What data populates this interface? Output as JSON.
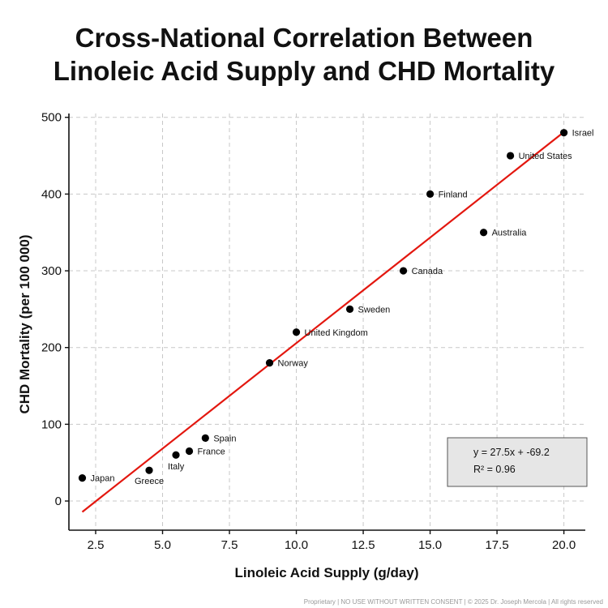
{
  "chart_data": {
    "type": "scatter",
    "title_lines": [
      "Cross-National Correlation Between",
      "Linoleic Acid Supply and CHD Mortality"
    ],
    "xlabel": "Linoleic Acid Supply (g/day)",
    "ylabel": "CHD Mortality (per 100 000)",
    "xlim": [
      1.5,
      20.8
    ],
    "ylim": [
      -38,
      505
    ],
    "x_ticks": [
      2.5,
      5.0,
      7.5,
      10.0,
      12.5,
      15.0,
      17.5,
      20.0
    ],
    "x_tick_labels": [
      "2.5",
      "5.0",
      "7.5",
      "10.0",
      "12.5",
      "15.0",
      "17.5",
      "20.0"
    ],
    "y_ticks": [
      0,
      100,
      200,
      300,
      400,
      500
    ],
    "y_tick_labels": [
      "0",
      "100",
      "200",
      "300",
      "400",
      "500"
    ],
    "grid": true,
    "points": [
      {
        "label": "Japan",
        "x": 2.0,
        "y": 30
      },
      {
        "label": "Greece",
        "x": 4.5,
        "y": 40
      },
      {
        "label": "Italy",
        "x": 5.5,
        "y": 60
      },
      {
        "label": "France",
        "x": 6.0,
        "y": 65
      },
      {
        "label": "Spain",
        "x": 6.6,
        "y": 82
      },
      {
        "label": "Norway",
        "x": 9.0,
        "y": 180
      },
      {
        "label": "United Kingdom",
        "x": 10.0,
        "y": 220
      },
      {
        "label": "Sweden",
        "x": 12.0,
        "y": 250
      },
      {
        "label": "Canada",
        "x": 14.0,
        "y": 300
      },
      {
        "label": "Finland",
        "x": 15.0,
        "y": 400
      },
      {
        "label": "Australia",
        "x": 17.0,
        "y": 350
      },
      {
        "label": "United States",
        "x": 18.0,
        "y": 450
      },
      {
        "label": "Israel",
        "x": 20.0,
        "y": 480
      }
    ],
    "trendline": {
      "slope": 27.5,
      "intercept": -69.2,
      "x_range": [
        2.0,
        20.0
      ],
      "color": "#e3170f"
    },
    "annotation": {
      "equation": "y = 27.5x + -69.2",
      "r2": "R² = 0.96",
      "placement": "bottom-right"
    },
    "point_color": "#000000"
  },
  "footer": "Proprietary | NO USE WITHOUT WRITTEN CONSENT | © 2025 Dr. Joseph Mercola | All rights reserved"
}
